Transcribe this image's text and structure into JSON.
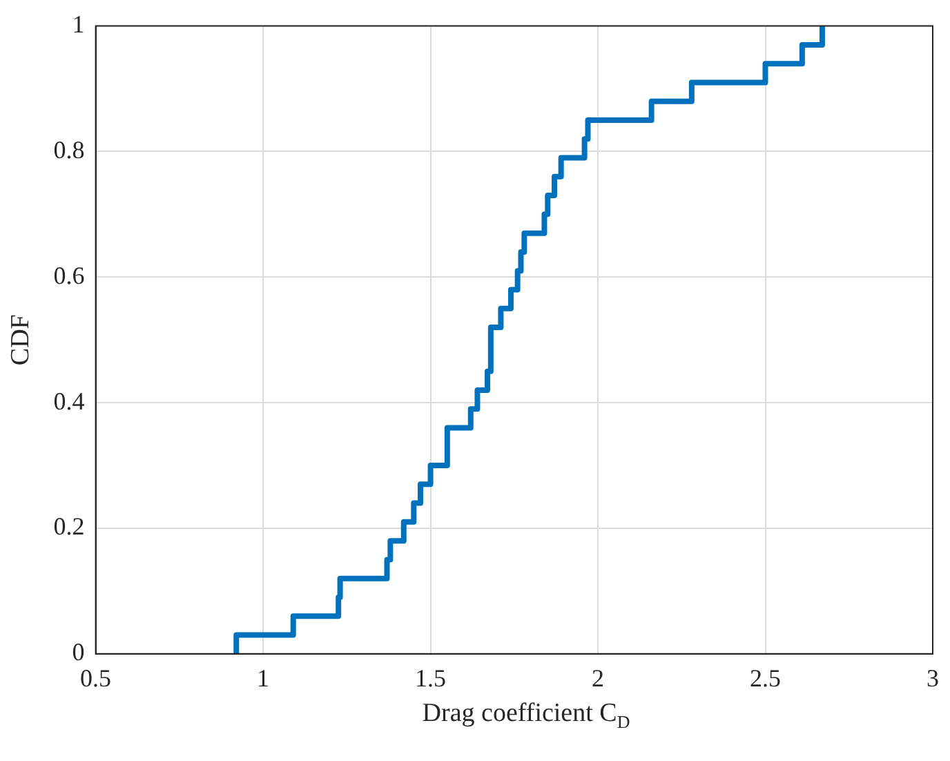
{
  "chart_data": {
    "type": "step",
    "xlabel": "Drag coefficient C$_{D}$",
    "ylabel": "CDF",
    "xlim": [
      0.5,
      3
    ],
    "xticks": [
      0.5,
      1,
      1.5,
      2,
      2.5,
      3
    ],
    "ylim": [
      0,
      1
    ],
    "yticks": [
      0,
      0.2,
      0.4,
      0.6,
      0.8,
      1
    ],
    "grid": true,
    "series": [
      {
        "color": "#0072bd",
        "x": [
          0.92,
          0.92,
          1.09,
          1.225,
          1.23,
          1.37,
          1.38,
          1.42,
          1.45,
          1.47,
          1.5,
          1.55,
          1.62,
          1.64,
          1.67,
          1.68,
          1.71,
          1.74,
          1.76,
          1.77,
          1.78,
          1.84,
          1.85,
          1.87,
          1.89,
          1.96,
          1.97,
          2.16,
          2.28,
          2.5,
          2.61,
          2.67
        ],
        "values": [
          0,
          0.03,
          0.06,
          0.09,
          0.12,
          0.15,
          0.18,
          0.21,
          0.24,
          0.27,
          0.3,
          0.36,
          0.39,
          0.42,
          0.45,
          0.52,
          0.55,
          0.58,
          0.61,
          0.64,
          0.67,
          0.7,
          0.73,
          0.76,
          0.79,
          0.82,
          0.85,
          0.88,
          0.91,
          0.94,
          0.97,
          1.0
        ]
      }
    ]
  }
}
